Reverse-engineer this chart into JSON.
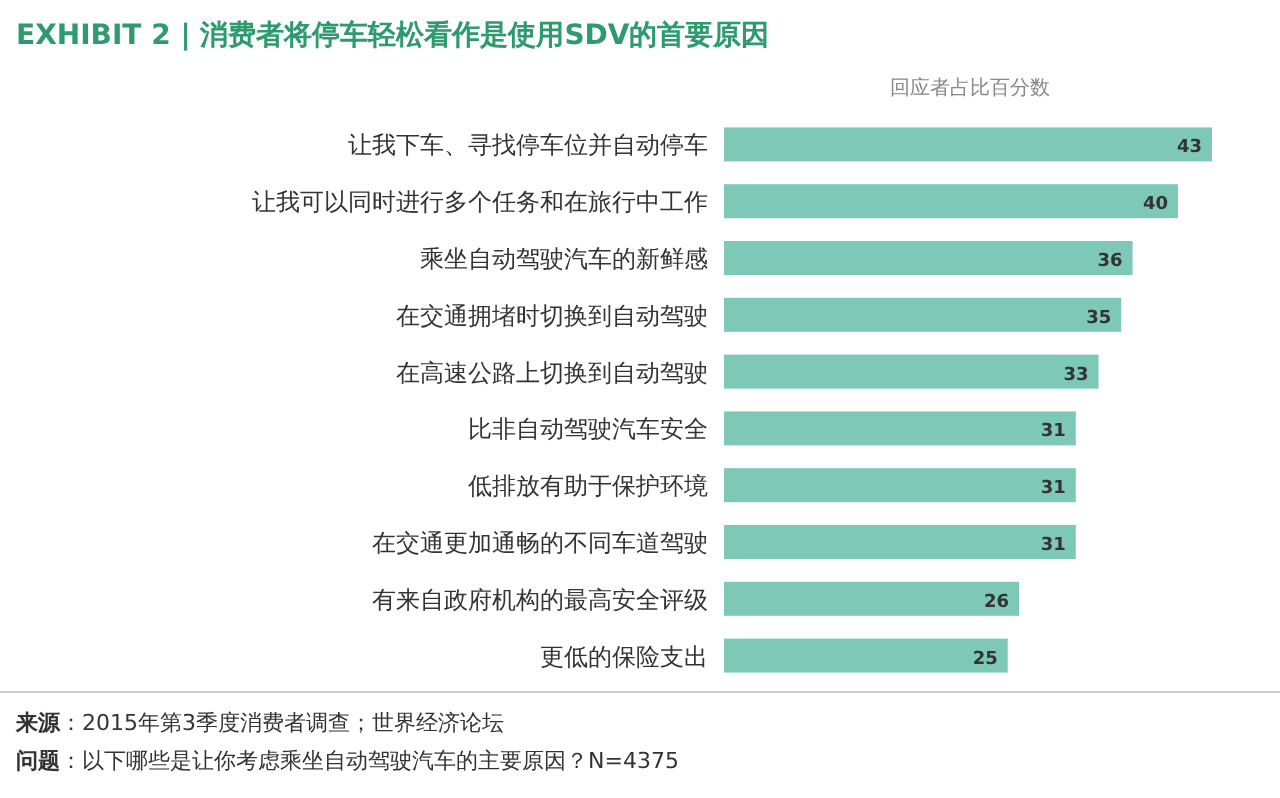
{
  "chart_data": {
    "type": "bar",
    "orientation": "horizontal",
    "title": "EXHIBIT 2 | 消费者将停车轻松看作是使用SDV的首要原因",
    "subtitle": "回应者占比百分数",
    "categories": [
      "让我下车、寻找停车位并自动停车",
      "让我可以同时进行多个任务和在旅行中工作",
      "乘坐自动驾驶汽车的新鲜感",
      "在交通拥堵时切换到自动驾驶",
      "在高速公路上切换到自动驾驶",
      "比非自动驾驶汽车安全",
      "低排放有助于保护环境",
      "在交通更加通畅的不同车道驾驶",
      "有来自政府机构的最高安全评级",
      "更低的保险支出"
    ],
    "values": [
      43,
      40,
      36,
      35,
      33,
      31,
      31,
      31,
      26,
      25
    ],
    "color": "#7dc8b6",
    "data_labels": true,
    "annotations": [
      "**来源**：2015年第3季度消费者调查；世界经济论坛",
      "**问题**：以下哪些是让你考虑乘坐自动驾驶汽车的主要原因？N=4375"
    ]
  }
}
